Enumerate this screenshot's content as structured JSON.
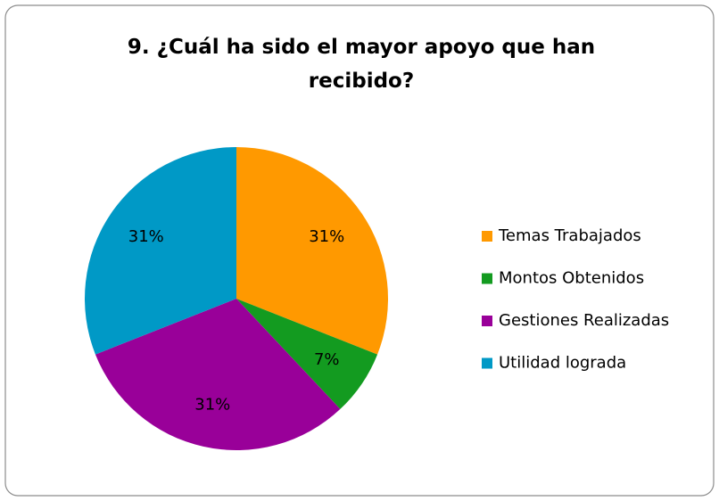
{
  "chart_data": {
    "type": "pie",
    "title": "9. ¿Cuál ha sido el mayor apoyo que han recibido?",
    "categories": [
      "Temas Trabajados",
      "Montos Obtenidos",
      "Gestiones Realizadas",
      "Utilidad lograda"
    ],
    "values": [
      31,
      7,
      31,
      31
    ],
    "value_labels": [
      "31%",
      "7%",
      "31%",
      "31%"
    ],
    "colors": [
      "#ff9900",
      "#139b20",
      "#990099",
      "#0099c6"
    ],
    "legend": "right"
  }
}
